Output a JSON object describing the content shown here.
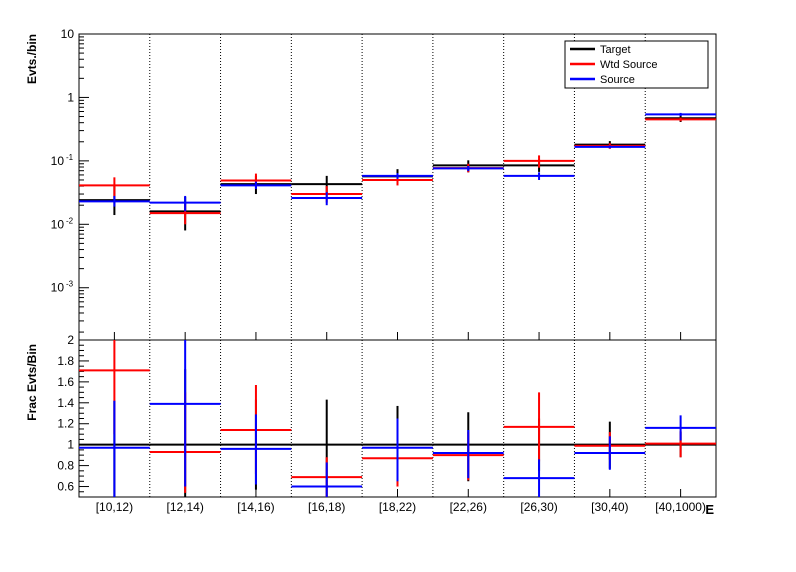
{
  "chart_data": [
    {
      "type": "step",
      "panel": "top",
      "ylabel": "Evts./bin",
      "yscale": "log",
      "ylim": [
        0.00015,
        10
      ],
      "y_ticks": [
        {
          "value": 10,
          "label": "10"
        },
        {
          "value": 1,
          "label": "1"
        },
        {
          "value": 0.1,
          "label": "10",
          "sup": "-1"
        },
        {
          "value": 0.01,
          "label": "10",
          "sup": "-2"
        },
        {
          "value": 0.001,
          "label": "10",
          "sup": "-3"
        }
      ],
      "categories": [
        "[10,12)",
        "[12,14)",
        "[14,16)",
        "[16,18)",
        "[18,22)",
        "[22,26)",
        "[26,30)",
        "[30,40)",
        "[40,1000)"
      ],
      "legend": {
        "position": "top-right",
        "entries": [
          "Target",
          "Wtd Source",
          "Source"
        ]
      },
      "series": [
        {
          "name": "Target",
          "color": "#000000",
          "values": [
            0.024,
            0.016,
            0.043,
            0.043,
            0.057,
            0.085,
            0.085,
            0.18,
            0.47
          ],
          "err_lo": [
            0.014,
            0.008,
            0.03,
            0.031,
            0.044,
            0.066,
            0.067,
            0.157,
            0.41
          ],
          "err_hi": [
            0.042,
            0.027,
            0.058,
            0.058,
            0.074,
            0.102,
            0.105,
            0.205,
            0.53
          ]
        },
        {
          "name": "Wtd Source",
          "color": "#ff0000",
          "values": [
            0.041,
            0.015,
            0.049,
            0.03,
            0.05,
            0.077,
            0.1,
            0.172,
            0.45
          ],
          "err_lo": [
            0.026,
            0.01,
            0.038,
            0.022,
            0.041,
            0.066,
            0.078,
            0.155,
            0.42
          ],
          "err_hi": [
            0.055,
            0.022,
            0.063,
            0.04,
            0.061,
            0.09,
            0.122,
            0.19,
            0.48
          ]
        },
        {
          "name": "Source",
          "color": "#0000ff",
          "values": [
            0.023,
            0.022,
            0.041,
            0.026,
            0.058,
            0.076,
            0.058,
            0.166,
            0.54
          ],
          "err_lo": [
            0.019,
            0.016,
            0.036,
            0.02,
            0.052,
            0.069,
            0.05,
            0.158,
            0.51
          ],
          "err_hi": [
            0.028,
            0.028,
            0.047,
            0.032,
            0.064,
            0.083,
            0.066,
            0.175,
            0.57
          ]
        }
      ]
    },
    {
      "type": "step",
      "panel": "bottom",
      "ylabel": "Frac Evts/Bin",
      "xlabel": "E",
      "yscale": "linear",
      "ylim": [
        0.5,
        2.0
      ],
      "y_ticks": [
        {
          "value": 2,
          "label": "2"
        },
        {
          "value": 1.8,
          "label": "1.8"
        },
        {
          "value": 1.6,
          "label": "1.6"
        },
        {
          "value": 1.4,
          "label": "1.4"
        },
        {
          "value": 1.2,
          "label": "1.2"
        },
        {
          "value": 1,
          "label": "1"
        },
        {
          "value": 0.8,
          "label": "0.8"
        },
        {
          "value": 0.6,
          "label": "0.6"
        }
      ],
      "categories": [
        "[10,12)",
        "[12,14)",
        "[14,16)",
        "[16,18)",
        "[18,22)",
        "[22,26)",
        "[26,30)",
        "[30,40)",
        "[40,1000)"
      ],
      "series": [
        {
          "name": "Target",
          "color": "#000000",
          "values": [
            1,
            1,
            1,
            1,
            1,
            1,
            1,
            1,
            1
          ],
          "err_lo": [
            0.5,
            0.5,
            0.57,
            0.5,
            0.62,
            0.65,
            0.75,
            0.77,
            0.88
          ],
          "err_hi": [
            1.42,
            1.72,
            1.43,
            1.43,
            1.37,
            1.31,
            1.25,
            1.22,
            1.12
          ]
        },
        {
          "name": "Wtd Source",
          "color": "#ff0000",
          "values": [
            1.71,
            0.93,
            1.14,
            0.69,
            0.87,
            0.9,
            1.17,
            0.99,
            1.01
          ],
          "err_lo": [
            1.1,
            0.54,
            0.72,
            0.5,
            0.6,
            0.66,
            0.84,
            0.86,
            0.88
          ],
          "err_hi": [
            2.0,
            1.5,
            1.57,
            0.88,
            1.1,
            1.12,
            1.5,
            1.12,
            1.13
          ]
        },
        {
          "name": "Source",
          "color": "#0000ff",
          "values": [
            0.97,
            1.39,
            0.96,
            0.6,
            0.97,
            0.92,
            0.68,
            0.92,
            1.16
          ],
          "err_lo": [
            0.5,
            0.6,
            0.62,
            0.5,
            0.65,
            0.68,
            0.5,
            0.76,
            1.04
          ],
          "err_hi": [
            1.42,
            2.0,
            1.29,
            0.83,
            1.25,
            1.14,
            0.86,
            1.08,
            1.28
          ]
        }
      ]
    }
  ]
}
